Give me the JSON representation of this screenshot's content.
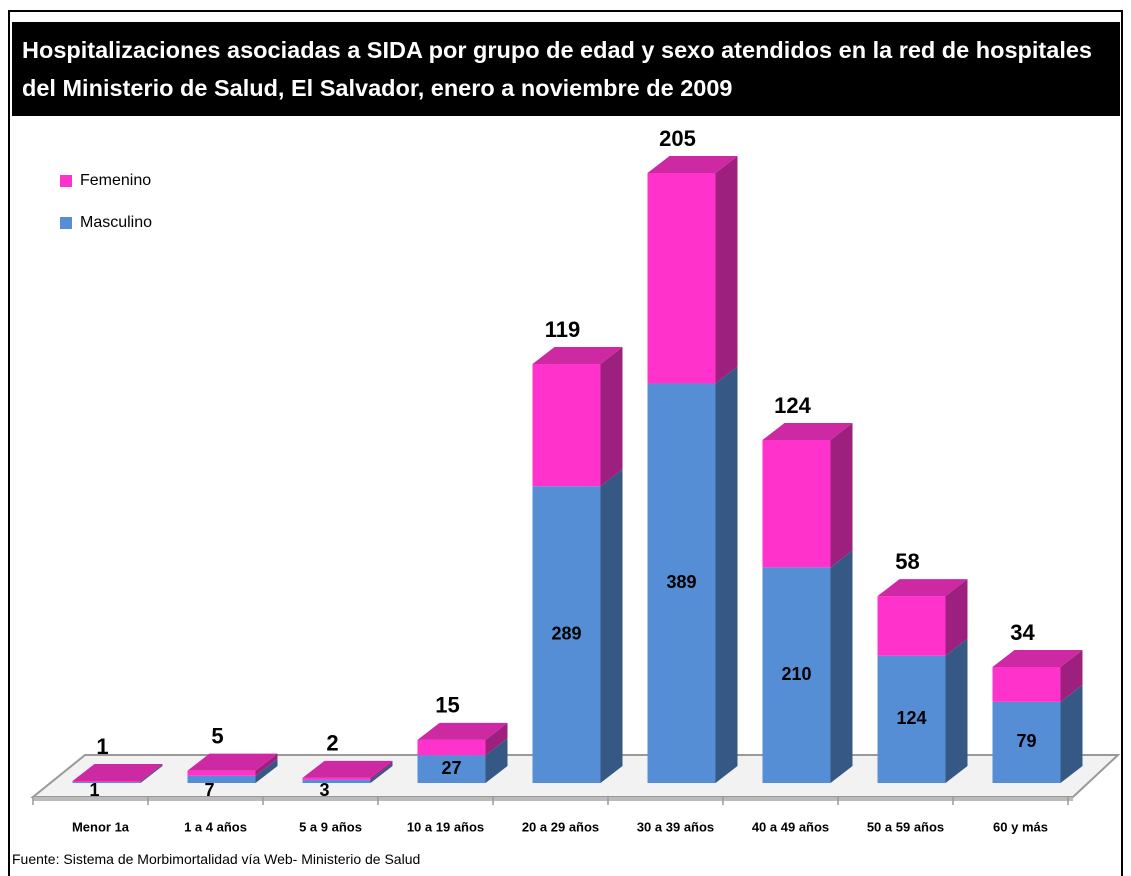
{
  "chart_data": {
    "type": "bar3d_stacked",
    "title": "Hospitalizaciones asociadas a SIDA por grupo de edad y sexo atendidos en la red de hospitales del Ministerio de Salud, El Salvador, enero a noviembre de 2009",
    "categories": [
      "Menor 1a",
      "1 a 4 años",
      "5 a 9 años",
      "10 a 19 años",
      "20 a 29 años",
      "30 a 39 años",
      "40 a 49 años",
      "50 a 59 años",
      "60 y más"
    ],
    "series": [
      {
        "name": "Masculino",
        "color": "#558ed5",
        "values": [
          1,
          7,
          3,
          27,
          289,
          389,
          210,
          124,
          79
        ]
      },
      {
        "name": "Femenino",
        "color": "#ff33cc",
        "values": [
          1,
          5,
          2,
          15,
          119,
          205,
          124,
          58,
          34
        ]
      }
    ],
    "source": "Fuente: Sistema de Morbimortalidad vía Web- Ministerio de Salud"
  }
}
